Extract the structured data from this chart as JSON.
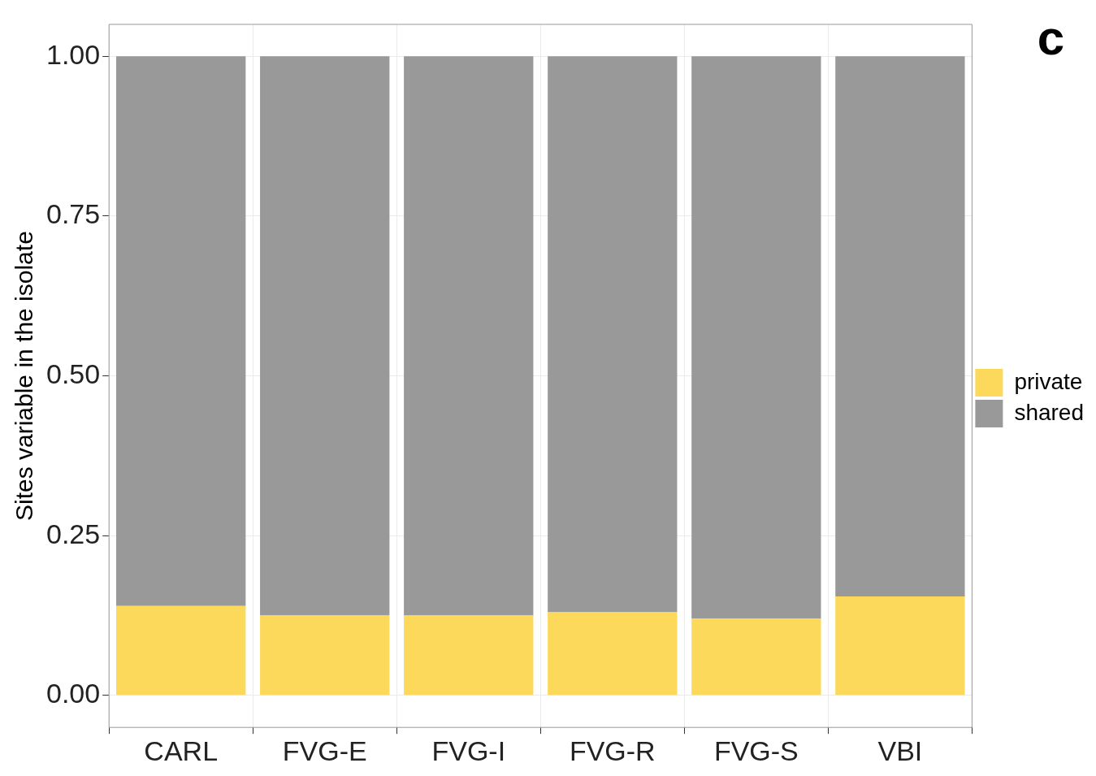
{
  "chart_data": {
    "type": "bar",
    "stacked": true,
    "ylabel": "Sites variable in the isolate",
    "categories": [
      "CARL",
      "FVG-E",
      "FVG-I",
      "FVG-R",
      "FVG-S",
      "VBI"
    ],
    "series": [
      {
        "name": "private",
        "color": "#fcd95b",
        "values": [
          0.14,
          0.125,
          0.125,
          0.13,
          0.12,
          0.155
        ]
      },
      {
        "name": "shared",
        "color": "#999999",
        "values": [
          0.86,
          0.875,
          0.875,
          0.87,
          0.88,
          0.845
        ]
      }
    ],
    "ylim": [
      -0.05,
      1.05
    ],
    "yticks": [
      {
        "value": 0,
        "label": "0.00"
      },
      {
        "value": 0.25,
        "label": "0.25"
      },
      {
        "value": 0.5,
        "label": "0.50"
      },
      {
        "value": 0.75,
        "label": "0.75"
      },
      {
        "value": 1,
        "label": "1.00"
      }
    ],
    "grid": true,
    "legend": "right",
    "annotations": [
      "c"
    ]
  }
}
